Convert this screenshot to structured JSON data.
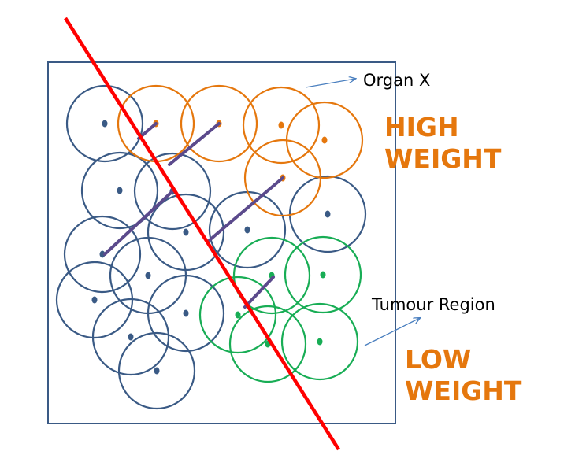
{
  "labels": {
    "organ": "Organ X",
    "tumour": "Tumour Region",
    "high_weight_1": "HIGH",
    "high_weight_2": "WEIGHT",
    "low_weight_1": "LOW",
    "low_weight_2": "WEIGHT"
  },
  "colors": {
    "normal": "#3a5a85",
    "high": "#e5770d",
    "tumour": "#18ad55",
    "divider": "#ff0000",
    "link": "#5b4a8c",
    "weight_text": "#e5770d",
    "arrow": "#4a7fbf",
    "frame": "#3a5a85"
  },
  "legend": {
    "normal": "blue circles",
    "high": "orange circles",
    "tumour": "green circles"
  }
}
